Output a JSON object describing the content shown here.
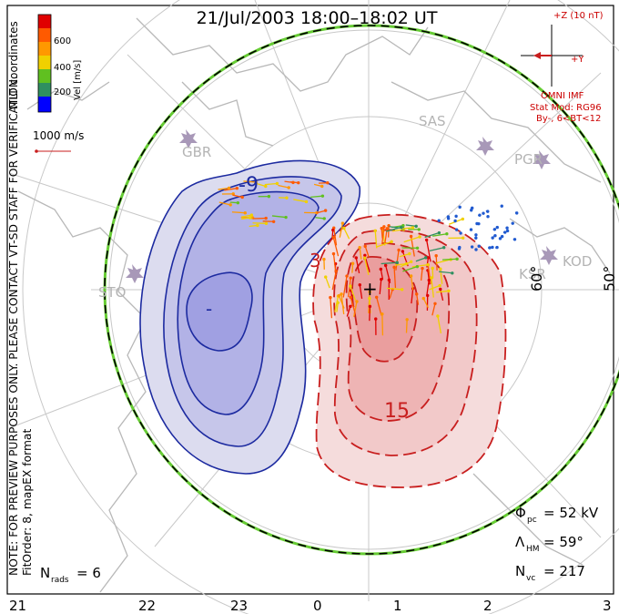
{
  "title": "21/Jul/2003 18:00–18:02 UT",
  "colorbar": {
    "label": "Vel [m/s]",
    "ticks": [
      "600",
      "400",
      "200"
    ],
    "colors": [
      "#e00000",
      "#ff8000",
      "#f0d000",
      "#60c020",
      "#2f8f60",
      "#205ad0",
      "#0000ff"
    ]
  },
  "coord_label": "MLT coordinates",
  "note": "NOTE: FOR PREVIEW PURPOSES ONLY. PLEASE CONTACT VT-SD STAFF FOR VERIFICATION.",
  "fitorder": "FitOrder: 8, mapEX format",
  "scale": {
    "label": "1000 m/s"
  },
  "imf": {
    "z_label": "+Z (10 nT)",
    "y_label": "+Y",
    "source": "OMNI IMF",
    "stat_mod": "Stat Mod: RG96",
    "condition": "By-, 6<BT<12"
  },
  "stations": [
    "SAS",
    "PGR",
    "GBR",
    "STO",
    "KOD",
    "KSR"
  ],
  "contours": {
    "neg_label": "-9",
    "neg_min": "-",
    "pos_label1": "3",
    "pos_label2": "15",
    "pos_max": "+"
  },
  "lat_labels": [
    "60°",
    "50°"
  ],
  "stats": {
    "phi_pc_sym": "Φ",
    "phi_pc_sub": "pc",
    "phi_pc_val": "= 52 kV",
    "lambda_sym": "Λ",
    "lambda_sub": "HM",
    "lambda_val": "= 59°",
    "nvc_sym": "N",
    "nvc_sub": "vc",
    "nvc_val": "= 217",
    "nrads_sym": "N",
    "nrads_sub": "rads",
    "nrads_val": "= 6"
  },
  "mlt_labels": [
    "21",
    "22",
    "23",
    "0",
    "1",
    "2",
    "3"
  ],
  "colors": {
    "negative": "#1c2aa0",
    "positive": "#c81e1e",
    "boundary_green": "#66cc33"
  }
}
